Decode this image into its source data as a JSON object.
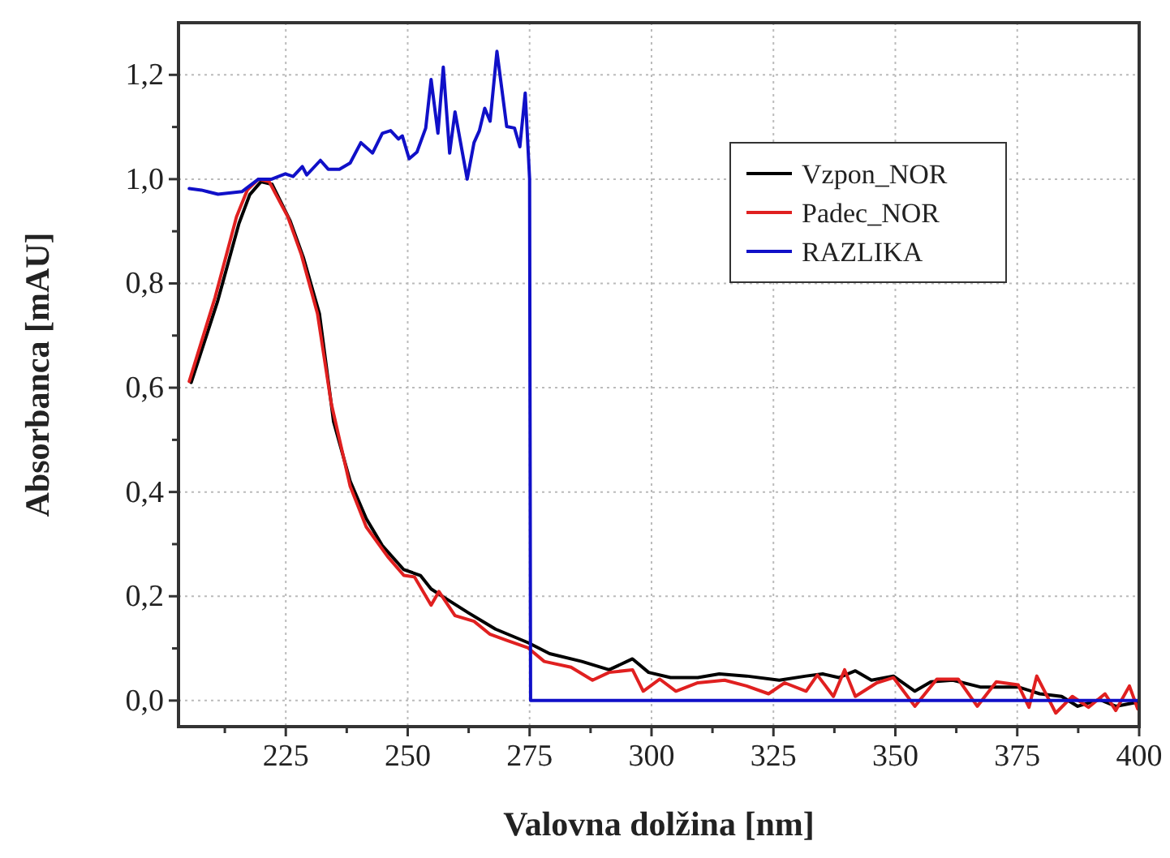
{
  "chart_data": {
    "type": "line",
    "xlabel": "Valovna dolžina [nm]",
    "ylabel": "Absorbanca [mAU]",
    "xlim": [
      203,
      400
    ],
    "ylim": [
      -0.05,
      1.3
    ],
    "xticks": [
      {
        "value": 212.5,
        "label": null
      },
      225,
      {
        "value": 237.5,
        "label": null
      },
      250,
      {
        "value": 262.5,
        "label": null
      },
      275,
      {
        "value": 287.5,
        "label": null
      },
      300,
      {
        "value": 312.5,
        "label": null
      },
      325,
      {
        "value": 337.5,
        "label": null
      },
      350,
      {
        "value": 362.5,
        "label": null
      },
      375,
      {
        "value": 387.5,
        "label": null
      },
      400
    ],
    "yticks": [
      {
        "value": 0,
        "label": "0,0"
      },
      {
        "value": 0.1,
        "label": null
      },
      {
        "value": 0.2,
        "label": "0,2"
      },
      {
        "value": 0.3,
        "label": null
      },
      {
        "value": 0.4,
        "label": "0,4"
      },
      {
        "value": 0.5,
        "label": null
      },
      {
        "value": 0.6,
        "label": "0,6"
      },
      {
        "value": 0.7,
        "label": null
      },
      {
        "value": 0.8,
        "label": "0,8"
      },
      {
        "value": 0.9,
        "label": null
      },
      {
        "value": 1.0,
        "label": "1,0"
      },
      {
        "value": 1.1,
        "label": null
      },
      {
        "value": 1.2,
        "label": "1,2"
      }
    ],
    "grid": true,
    "legend": "top right",
    "marker": "none",
    "line_style": "solid",
    "series": [
      {
        "name": "Vzpon_NOR",
        "color": "#000000",
        "x": [
          205.6,
          211.0,
          215.4,
          217.6,
          219.9,
          222.2,
          225.9,
          228.6,
          231.9,
          234.8,
          238.2,
          241.5,
          244.8,
          249.2,
          252.6,
          254.8,
          258.1,
          262.5,
          268.0,
          274.7,
          279.1,
          285.7,
          291.3,
          296.1,
          299.4,
          303.9,
          309.5,
          313.9,
          319.5,
          326.2,
          331.7,
          335.1,
          338.4,
          341.8,
          345.1,
          349.6,
          354.0,
          357.3,
          361.8,
          367.4,
          375.2,
          379.6,
          384.1,
          387.4,
          391.9,
          395.2,
          399.7
        ],
        "values": [
          0.61,
          0.765,
          0.915,
          0.97,
          0.995,
          0.99,
          0.92,
          0.85,
          0.742,
          0.535,
          0.421,
          0.349,
          0.297,
          0.251,
          0.24,
          0.214,
          0.194,
          0.168,
          0.137,
          0.111,
          0.09,
          0.075,
          0.059,
          0.08,
          0.054,
          0.044,
          0.044,
          0.051,
          0.047,
          0.039,
          0.047,
          0.051,
          0.044,
          0.057,
          0.039,
          0.047,
          0.018,
          0.036,
          0.039,
          0.026,
          0.026,
          0.013,
          0.008,
          -0.011,
          0.002,
          -0.011,
          -0.003
        ]
      },
      {
        "name": "Padec_NOR",
        "color": "#e02020",
        "x": [
          205.2,
          210.5,
          214.9,
          217.1,
          219.4,
          221.6,
          225.4,
          228.2,
          231.5,
          234.3,
          238.2,
          241.5,
          245.9,
          249.2,
          251.4,
          254.8,
          256.4,
          259.7,
          263.6,
          266.9,
          270.2,
          274.7,
          278.0,
          283.5,
          287.9,
          291.3,
          296.1,
          298.3,
          301.7,
          305.0,
          309.5,
          315.0,
          319.5,
          324.0,
          327.3,
          331.7,
          334.0,
          337.3,
          339.6,
          341.8,
          346.2,
          349.6,
          354.0,
          358.5,
          362.9,
          366.8,
          370.7,
          375.2,
          377.4,
          379.0,
          382.9,
          386.3,
          389.6,
          393.0,
          395.2,
          398.0,
          399.7
        ],
        "values": [
          0.612,
          0.773,
          0.928,
          0.979,
          1.0,
          0.995,
          0.928,
          0.855,
          0.742,
          0.571,
          0.411,
          0.333,
          0.276,
          0.24,
          0.237,
          0.183,
          0.209,
          0.163,
          0.152,
          0.127,
          0.116,
          0.101,
          0.075,
          0.064,
          0.039,
          0.054,
          0.059,
          0.018,
          0.041,
          0.018,
          0.034,
          0.039,
          0.028,
          0.013,
          0.034,
          0.018,
          0.049,
          0.008,
          0.059,
          0.008,
          0.034,
          0.044,
          -0.011,
          0.041,
          0.041,
          -0.011,
          0.036,
          0.03,
          -0.013,
          0.047,
          -0.024,
          0.008,
          -0.013,
          0.013,
          -0.019,
          0.028,
          -0.016
        ]
      },
      {
        "name": "RAZLIKA",
        "color": "#1010c8",
        "x": [
          205.2,
          207.7,
          211.1,
          216.0,
          219.4,
          222.1,
          224.9,
          226.5,
          228.4,
          229.3,
          232.1,
          233.7,
          236.0,
          238.2,
          240.4,
          242.8,
          244.8,
          246.5,
          248.1,
          248.9,
          250.3,
          251.9,
          253.7,
          254.8,
          256.2,
          257.3,
          258.6,
          259.7,
          262.2,
          263.6,
          264.7,
          265.8,
          266.9,
          268.3,
          270.3,
          271.9,
          273.0,
          274.1,
          275.0,
          275.2,
          400
        ],
        "values": [
          0.982,
          0.979,
          0.971,
          0.976,
          1.0,
          1.0,
          1.01,
          1.005,
          1.024,
          1.008,
          1.036,
          1.019,
          1.019,
          1.031,
          1.07,
          1.05,
          1.088,
          1.093,
          1.077,
          1.083,
          1.039,
          1.052,
          1.098,
          1.191,
          1.088,
          1.215,
          1.05,
          1.129,
          1.0,
          1.07,
          1.093,
          1.136,
          1.111,
          1.245,
          1.101,
          1.098,
          1.062,
          1.165,
          1.0,
          0,
          0
        ]
      }
    ]
  }
}
